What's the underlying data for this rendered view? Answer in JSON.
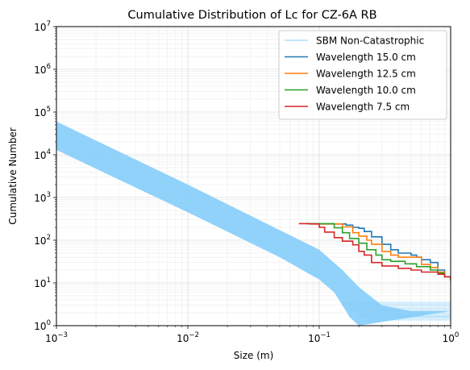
{
  "chart_data": {
    "type": "line",
    "title": "Cumulative Distribution of Lc for CZ-6A RB",
    "xlabel": "Size (m)",
    "ylabel": "Cumulative Number",
    "xscale": "log",
    "yscale": "log",
    "xlim": [
      0.001,
      1
    ],
    "ylim": [
      1,
      10000000
    ],
    "grid": true,
    "legend_placement": "top-right",
    "x_ticks": [
      {
        "base": "10",
        "exp": "−3",
        "value": 0.001
      },
      {
        "base": "10",
        "exp": "−2",
        "value": 0.01
      },
      {
        "base": "10",
        "exp": "−1",
        "value": 0.1
      },
      {
        "base": "10",
        "exp": "0",
        "value": 1
      }
    ],
    "y_ticks": [
      {
        "base": "10",
        "exp": "0",
        "value": 1
      },
      {
        "base": "10",
        "exp": "1",
        "value": 10
      },
      {
        "base": "10",
        "exp": "2",
        "value": 100
      },
      {
        "base": "10",
        "exp": "3",
        "value": 1000
      },
      {
        "base": "10",
        "exp": "4",
        "value": 10000
      },
      {
        "base": "10",
        "exp": "5",
        "value": 100000
      },
      {
        "base": "10",
        "exp": "6",
        "value": 1000000
      },
      {
        "base": "10",
        "exp": "7",
        "value": 10000000
      }
    ],
    "band": {
      "name": "SBM Non-Catastrophic",
      "color": "#87cefa",
      "upper": [
        [
          0.001,
          60000
        ],
        [
          0.01,
          2000
        ],
        [
          0.1,
          60
        ],
        [
          0.15,
          20
        ],
        [
          0.2,
          8
        ],
        [
          0.3,
          3
        ],
        [
          0.5,
          2.2
        ],
        [
          1,
          2.2
        ]
      ],
      "lower": [
        [
          0.001,
          13000
        ],
        [
          0.01,
          450
        ],
        [
          0.05,
          40
        ],
        [
          0.1,
          12
        ],
        [
          0.13,
          6
        ],
        [
          0.15,
          3
        ],
        [
          0.17,
          1.6
        ],
        [
          0.2,
          1
        ]
      ]
    },
    "series": [
      {
        "name": "Wavelength 15.0 cm",
        "color": "#1f77b4",
        "points": [
          [
            0.1,
            240
          ],
          [
            0.14,
            240
          ],
          [
            0.16,
            225
          ],
          [
            0.18,
            200
          ],
          [
            0.2,
            190
          ],
          [
            0.22,
            160
          ],
          [
            0.25,
            120
          ],
          [
            0.3,
            80
          ],
          [
            0.35,
            60
          ],
          [
            0.4,
            50
          ],
          [
            0.5,
            45
          ],
          [
            0.55,
            40
          ],
          [
            0.6,
            35
          ],
          [
            0.7,
            30
          ],
          [
            0.8,
            20
          ],
          [
            0.9,
            14
          ],
          [
            1,
            12
          ]
        ]
      },
      {
        "name": "Wavelength 12.5 cm",
        "color": "#ff7f0e",
        "points": [
          [
            0.09,
            240
          ],
          [
            0.13,
            240
          ],
          [
            0.15,
            205
          ],
          [
            0.18,
            150
          ],
          [
            0.2,
            125
          ],
          [
            0.23,
            100
          ],
          [
            0.25,
            80
          ],
          [
            0.3,
            55
          ],
          [
            0.35,
            45
          ],
          [
            0.4,
            40
          ],
          [
            0.5,
            40
          ],
          [
            0.6,
            27
          ],
          [
            0.7,
            23
          ],
          [
            0.8,
            18
          ],
          [
            0.9,
            14
          ],
          [
            1,
            12
          ]
        ]
      },
      {
        "name": "Wavelength 10.0 cm",
        "color": "#2ca02c",
        "points": [
          [
            0.08,
            245
          ],
          [
            0.11,
            245
          ],
          [
            0.13,
            195
          ],
          [
            0.15,
            150
          ],
          [
            0.17,
            110
          ],
          [
            0.2,
            85
          ],
          [
            0.23,
            60
          ],
          [
            0.27,
            45
          ],
          [
            0.3,
            35
          ],
          [
            0.35,
            32
          ],
          [
            0.45,
            28
          ],
          [
            0.55,
            24
          ],
          [
            0.7,
            20
          ],
          [
            0.8,
            17
          ],
          [
            0.9,
            14
          ],
          [
            1,
            11
          ]
        ]
      },
      {
        "name": "Wavelength 7.5 cm",
        "color": "#d62728",
        "points": [
          [
            0.07,
            245
          ],
          [
            0.085,
            240
          ],
          [
            0.1,
            200
          ],
          [
            0.11,
            155
          ],
          [
            0.13,
            115
          ],
          [
            0.15,
            95
          ],
          [
            0.18,
            78
          ],
          [
            0.2,
            55
          ],
          [
            0.22,
            45
          ],
          [
            0.25,
            30
          ],
          [
            0.3,
            25
          ],
          [
            0.4,
            22
          ],
          [
            0.5,
            20
          ],
          [
            0.6,
            18
          ],
          [
            0.8,
            16
          ],
          [
            0.9,
            14
          ],
          [
            1,
            12
          ]
        ]
      }
    ]
  }
}
